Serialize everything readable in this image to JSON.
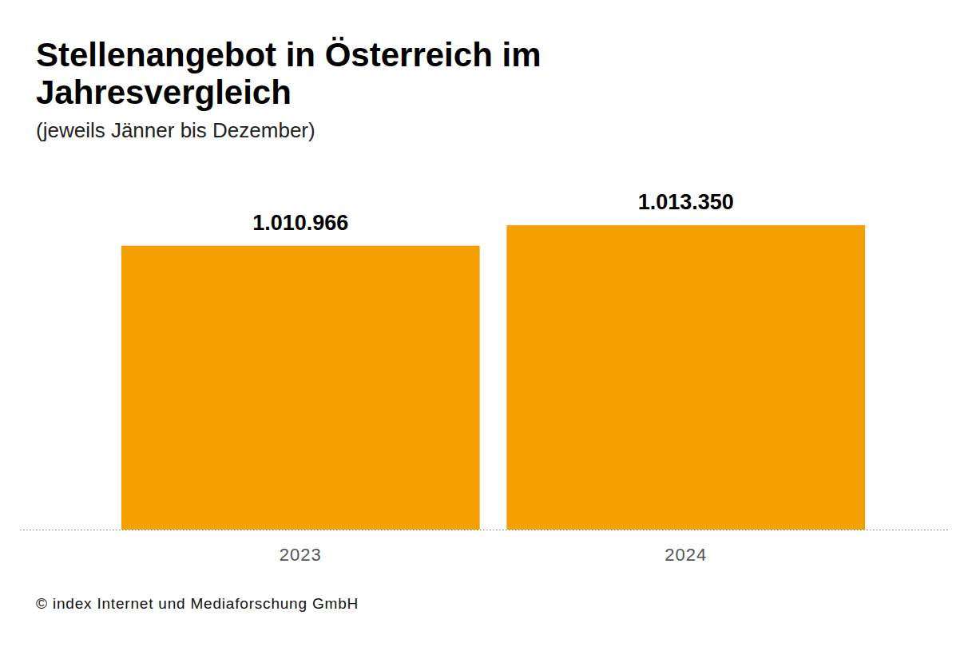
{
  "chart_data": {
    "type": "bar",
    "title": "Stellenangebot in Österreich im Jahresvergleich",
    "subtitle": "(jeweils Jänner bis Dezember)",
    "categories": [
      "2023",
      "2024"
    ],
    "values": [
      1010966,
      1013350
    ],
    "value_labels": [
      "1.010.966",
      "1.013.350"
    ],
    "color": "#f4a000",
    "ylim": [
      978000,
      1014000
    ],
    "grid": false,
    "data_labels": true,
    "tick_labels": "x",
    "source": "© index Internet und Mediaforschung GmbH"
  }
}
